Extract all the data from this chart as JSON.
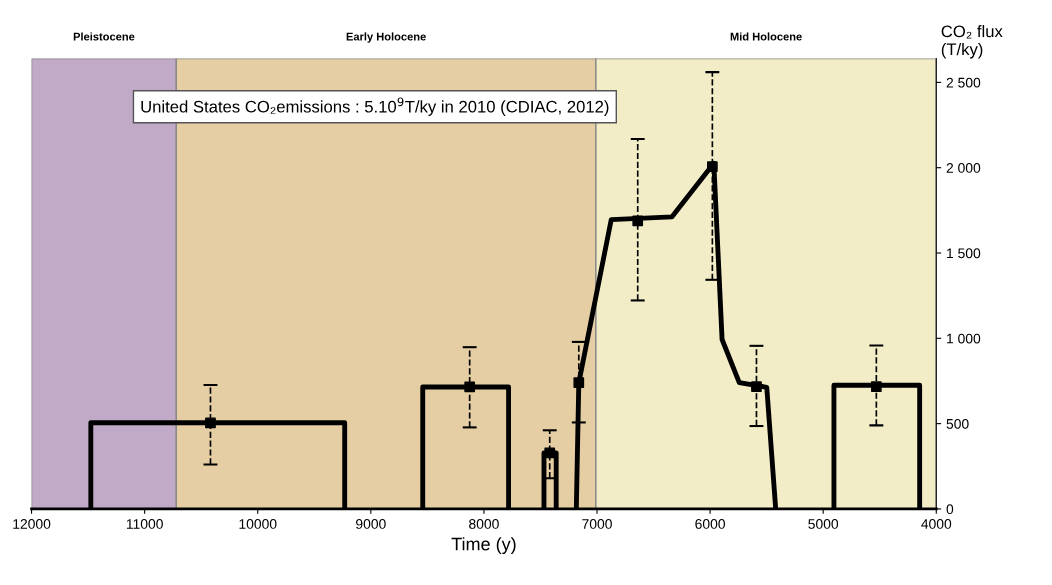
{
  "chart_data": {
    "type": "line",
    "xlabel": "Time (y)",
    "ylabel": "CO₂ flux (T/ky)",
    "annotations": [
      "United States CO₂emissions : 5.10$^{9}$T/ky in 2010 (CDIAC, 2012)"
    ],
    "xlim": [
      12000,
      4000
    ],
    "xticks": [
      12000,
      11000,
      10000,
      9000,
      8000,
      7000,
      6000,
      5000,
      4000
    ],
    "ylim": [
      0,
      2640
    ],
    "yticks": [
      0,
      500,
      {
        "value": 1000,
        "label": "1 000"
      },
      {
        "value": 1500,
        "label": "1 500"
      },
      {
        "value": 2000,
        "label": "2 000"
      },
      {
        "value": 2500,
        "label": "2 500"
      }
    ],
    "grid": false,
    "legend": false,
    "bands": [
      {
        "axis": "x",
        "from": 12000,
        "to": 10720,
        "label": "Pleistocene",
        "color": "#c1a9c8"
      },
      {
        "axis": "x",
        "from": 10720,
        "to": 7010,
        "label": "Early Holocene",
        "color": "#e5cea3"
      },
      {
        "axis": "x",
        "from": 7010,
        "to": 4000,
        "label": "Mid Holocene",
        "color": "#f2edc6"
      }
    ],
    "series": [
      {
        "color": "#000000",
        "marker": "none",
        "line_style": "solid",
        "x": [
          11476,
          11476,
          9231,
          9231
        ],
        "values": [
          0,
          505,
          505,
          0
        ]
      },
      {
        "color": "#000000",
        "marker": "none",
        "line_style": "solid",
        "x": [
          8541,
          8541,
          7782,
          7782
        ],
        "values": [
          0,
          715,
          715,
          0
        ]
      },
      {
        "color": "#000000",
        "marker": "none",
        "line_style": "solid",
        "x": [
          7469,
          7469,
          7361,
          7361
        ],
        "values": [
          0,
          329,
          329,
          0
        ]
      },
      {
        "color": "#000000",
        "marker": "none",
        "line_style": "solid",
        "x": [
          7183,
          7161,
          6874,
          6337,
          5967,
          5894,
          5742,
          5499,
          5420
        ],
        "values": [
          0,
          740,
          1696,
          1712,
          2026,
          993,
          740,
          713,
          0
        ]
      },
      {
        "color": "#000000",
        "marker": "none",
        "line_style": "solid",
        "x": [
          4905,
          4905,
          4147,
          4147
        ],
        "values": [
          0,
          725,
          725,
          0
        ]
      },
      {
        "type": "scatter",
        "color": "#000000",
        "marker": "square",
        "line_style": "dashed",
        "x": [
          10418,
          8126,
          7418,
          7161,
          6640,
          5980,
          5590,
          4530
        ],
        "values": [
          505,
          715,
          329,
          740,
          1688,
          2006,
          717,
          717
        ],
        "errors": [
          [
            261,
            726
          ],
          [
            478,
            948
          ],
          [
            180,
            461
          ],
          [
            507,
            979
          ],
          [
            1222,
            2168
          ],
          [
            1343,
            2560
          ],
          [
            486,
            956
          ],
          [
            490,
            958
          ]
        ]
      }
    ]
  }
}
